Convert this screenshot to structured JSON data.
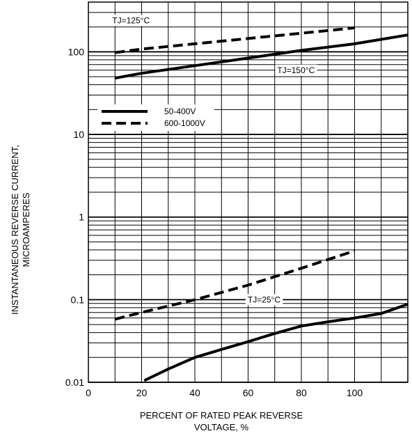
{
  "chart_data": {
    "type": "line",
    "xlabel_lines": [
      "PERCENT OF RATED PEAK REVERSE",
      "VOLTAGE, %"
    ],
    "ylabel_lines": [
      "INSTANTANEOUS REVERSE CURRENT,",
      "MICROAMPERES"
    ],
    "xlim": [
      0,
      120
    ],
    "ylim": [
      0.01,
      400
    ],
    "yscale": "log",
    "grid": true,
    "x_ticks": [
      {
        "value": 0,
        "label": "0"
      },
      {
        "value": 20,
        "label": "20"
      },
      {
        "value": 40,
        "label": "40"
      },
      {
        "value": 60,
        "label": "60"
      },
      {
        "value": 80,
        "label": "80"
      },
      {
        "value": 100,
        "label": "100"
      }
    ],
    "y_ticks": [
      {
        "value": 0.01,
        "label": "0.01"
      },
      {
        "value": 0.1,
        "label": "0.1"
      },
      {
        "value": 1,
        "label": "1"
      },
      {
        "value": 10,
        "label": "10"
      },
      {
        "value": 100,
        "label": "100"
      }
    ],
    "legend": {
      "placement": "upper-left",
      "entries": [
        {
          "label": "50-400V",
          "style": "solid"
        },
        {
          "label": "600-1000V",
          "style": "dashed"
        }
      ]
    },
    "annotations": [
      {
        "text": "TJ=125°C",
        "x": 16,
        "y": 240
      },
      {
        "text": "TJ=150°C",
        "x": 78,
        "y": 60
      },
      {
        "text": "TJ=25°C",
        "x": 66,
        "y": 0.1
      }
    ],
    "series": [
      {
        "name": "50-400V",
        "condition": "TJ=150°C",
        "style": "solid",
        "x": [
          10,
          20,
          40,
          60,
          80,
          100,
          120
        ],
        "y": [
          48,
          55,
          68,
          84,
          104,
          125,
          160
        ]
      },
      {
        "name": "600-1000V",
        "condition": "TJ=125°C",
        "style": "dashed",
        "x": [
          10,
          20,
          40,
          60,
          80,
          100
        ],
        "y": [
          98,
          108,
          125,
          145,
          168,
          195
        ]
      },
      {
        "name": "50-400V",
        "condition": "TJ=25°C",
        "style": "solid",
        "x": [
          21,
          30,
          40,
          50,
          60,
          70,
          80,
          90,
          100,
          110,
          120
        ],
        "y": [
          0.0105,
          0.0145,
          0.02,
          0.025,
          0.031,
          0.039,
          0.048,
          0.054,
          0.06,
          0.068,
          0.088
        ]
      },
      {
        "name": "600-1000V",
        "condition": "TJ=25°C",
        "style": "dashed",
        "x": [
          10,
          20,
          40,
          60,
          80,
          100
        ],
        "y": [
          0.058,
          0.07,
          0.1,
          0.15,
          0.24,
          0.39
        ]
      }
    ],
    "colors": {
      "line": "#000000",
      "grid": "#000000",
      "background": "#ffffff"
    }
  }
}
